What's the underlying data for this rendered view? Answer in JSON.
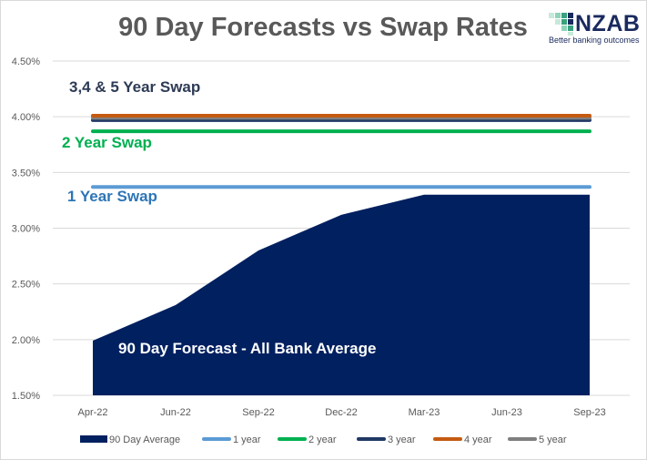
{
  "header": {
    "title": "90 Day Forecasts vs Swap Rates"
  },
  "logo": {
    "word": "NZAB",
    "tagline": "Better banking outcomes",
    "colors": [
      "#1a2a5e",
      "#3aa17e",
      "#8fd3b8",
      "#c7e9da"
    ]
  },
  "annotations": {
    "swap_345": "3,4 & 5 Year Swap",
    "swap_2": "2 Year Swap",
    "swap_1": "1 Year Swap",
    "forecast": "90 Day Forecast  - All Bank Average"
  },
  "chart_data": {
    "type": "area",
    "categories": [
      "Apr-22",
      "Jun-22",
      "Sep-22",
      "Dec-22",
      "Mar-23",
      "Jun-23",
      "Sep-23"
    ],
    "yticks": [
      "1.50%",
      "2.00%",
      "2.50%",
      "3.00%",
      "3.50%",
      "4.00%",
      "4.50%"
    ],
    "ylim": [
      1.5,
      4.5
    ],
    "grid": true,
    "legend_placement": "bottom",
    "series": [
      {
        "name": "90 Day Average",
        "kind": "area",
        "color": "#002060",
        "values": [
          1.99,
          2.31,
          2.8,
          3.12,
          3.3,
          3.3,
          3.3
        ]
      },
      {
        "name": "1 year",
        "kind": "line",
        "color": "#5b9bd5",
        "values": [
          3.37,
          3.37,
          3.37,
          3.37,
          3.37,
          3.37,
          3.37
        ]
      },
      {
        "name": "2 year",
        "kind": "line",
        "color": "#00b050",
        "values": [
          3.87,
          3.87,
          3.87,
          3.87,
          3.87,
          3.87,
          3.87
        ]
      },
      {
        "name": "3 year",
        "kind": "line",
        "color": "#203864",
        "values": [
          3.97,
          3.97,
          3.97,
          3.97,
          3.97,
          3.97,
          3.97
        ]
      },
      {
        "name": "4 year",
        "kind": "line",
        "color": "#c55a11",
        "values": [
          4.01,
          4.01,
          4.01,
          4.01,
          4.01,
          4.01,
          4.01
        ]
      },
      {
        "name": "5 year",
        "kind": "line",
        "color": "#7f7f7f",
        "values": [
          3.99,
          3.99,
          3.99,
          3.99,
          3.99,
          3.99,
          3.99
        ]
      }
    ]
  }
}
